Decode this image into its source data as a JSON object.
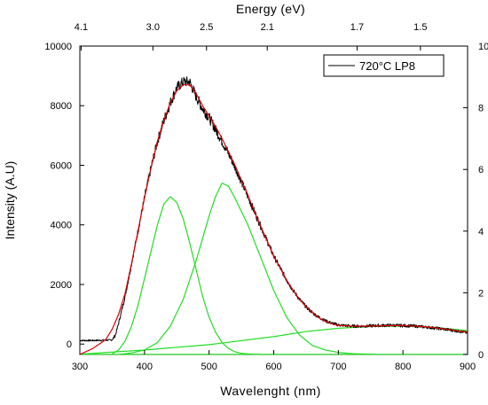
{
  "chart_data": {
    "type": "line",
    "xlabel": "Wavelenght (nm)",
    "ylabel": "Intensity (A.U)",
    "x2label": "Energy (eV)",
    "xlim": [
      300,
      900
    ],
    "ylim": [
      -350,
      10000
    ],
    "y2lim": [
      0,
      10
    ],
    "xticks": [
      300,
      400,
      500,
      600,
      700,
      800,
      900
    ],
    "yticks": [
      0,
      2000,
      4000,
      6000,
      8000,
      10000
    ],
    "y2ticks": [
      0,
      2,
      4,
      6,
      8,
      10
    ],
    "top_ticks": [
      {
        "label": "4.1",
        "x": 302
      },
      {
        "label": "3.0",
        "x": 413
      },
      {
        "label": "2.5",
        "x": 496
      },
      {
        "label": "2.1",
        "x": 590
      },
      {
        "label": "1.7",
        "x": 729
      },
      {
        "label": "1.5",
        "x": 827
      }
    ],
    "legend": {
      "label": "720°C LP8",
      "position": "top-right"
    },
    "colors": {
      "data": "#000000",
      "fit": "#e00000",
      "components": "#22dd22"
    },
    "series": [
      {
        "role": "measured",
        "x": [
          300,
          320,
          340,
          350,
          355,
          360,
          370,
          380,
          390,
          400,
          410,
          420,
          430,
          440,
          450,
          460,
          470,
          480,
          490,
          500,
          510,
          520,
          530,
          540,
          550,
          560,
          570,
          580,
          590,
          600,
          610,
          620,
          630,
          640,
          650,
          660,
          670,
          680,
          690,
          700,
          720,
          740,
          760,
          780,
          800,
          820,
          840,
          860,
          880,
          900
        ],
        "y": [
          120,
          120,
          130,
          140,
          300,
          700,
          1600,
          2700,
          3800,
          4900,
          5900,
          6800,
          7500,
          8100,
          8600,
          8800,
          8800,
          8300,
          7900,
          7600,
          7200,
          6800,
          6400,
          5950,
          5450,
          4950,
          4450,
          3950,
          3450,
          2950,
          2550,
          2150,
          1800,
          1500,
          1250,
          1050,
          900,
          780,
          700,
          640,
          600,
          600,
          620,
          630,
          620,
          600,
          560,
          510,
          450,
          380
        ]
      },
      {
        "role": "fit",
        "x": [
          300,
          320,
          340,
          350,
          360,
          370,
          380,
          390,
          400,
          410,
          420,
          430,
          440,
          450,
          460,
          470,
          480,
          490,
          500,
          510,
          520,
          530,
          540,
          550,
          560,
          570,
          580,
          590,
          600,
          610,
          620,
          630,
          640,
          650,
          660,
          670,
          680,
          690,
          700,
          720,
          740,
          760,
          780,
          800,
          820,
          840,
          860,
          880,
          900
        ],
        "y": [
          -350,
          -150,
          150,
          500,
          1000,
          1700,
          2700,
          3800,
          4900,
          5900,
          6800,
          7500,
          8100,
          8500,
          8700,
          8700,
          8400,
          8000,
          7650,
          7300,
          6900,
          6450,
          6000,
          5500,
          5000,
          4450,
          3950,
          3450,
          2950,
          2550,
          2150,
          1800,
          1500,
          1250,
          1050,
          880,
          760,
          680,
          630,
          600,
          600,
          610,
          620,
          620,
          600,
          570,
          520,
          460,
          400
        ]
      },
      {
        "role": "component",
        "x": [
          350,
          360,
          370,
          380,
          390,
          400,
          410,
          420,
          430,
          440,
          450,
          460,
          470,
          480,
          490,
          500,
          510,
          520,
          530,
          540,
          550,
          560,
          570,
          580
        ],
        "y": [
          -330,
          -200,
          100,
          600,
          1300,
          2200,
          3100,
          4000,
          4700,
          4950,
          4750,
          4200,
          3400,
          2500,
          1600,
          900,
          400,
          50,
          -150,
          -260,
          -310,
          -330,
          -340,
          -345
        ]
      },
      {
        "role": "component",
        "x": [
          360,
          380,
          400,
          420,
          440,
          460,
          480,
          500,
          510,
          520,
          530,
          540,
          560,
          580,
          600,
          620,
          640,
          660,
          680,
          700,
          720,
          740,
          760
        ],
        "y": [
          -345,
          -300,
          -200,
          50,
          600,
          1500,
          2800,
          4300,
          4950,
          5400,
          5300,
          4900,
          4000,
          2900,
          1800,
          900,
          300,
          -50,
          -200,
          -280,
          -320,
          -335,
          -345
        ]
      },
      {
        "role": "component",
        "x": [
          300,
          400,
          500,
          600,
          650,
          700,
          750,
          800,
          850,
          900
        ],
        "y": [
          -340,
          -200,
          -20,
          250,
          420,
          530,
          590,
          600,
          560,
          450
        ]
      },
      {
        "role": "baseline",
        "x": [
          300,
          900
        ],
        "y": [
          -345,
          -345
        ]
      }
    ]
  }
}
